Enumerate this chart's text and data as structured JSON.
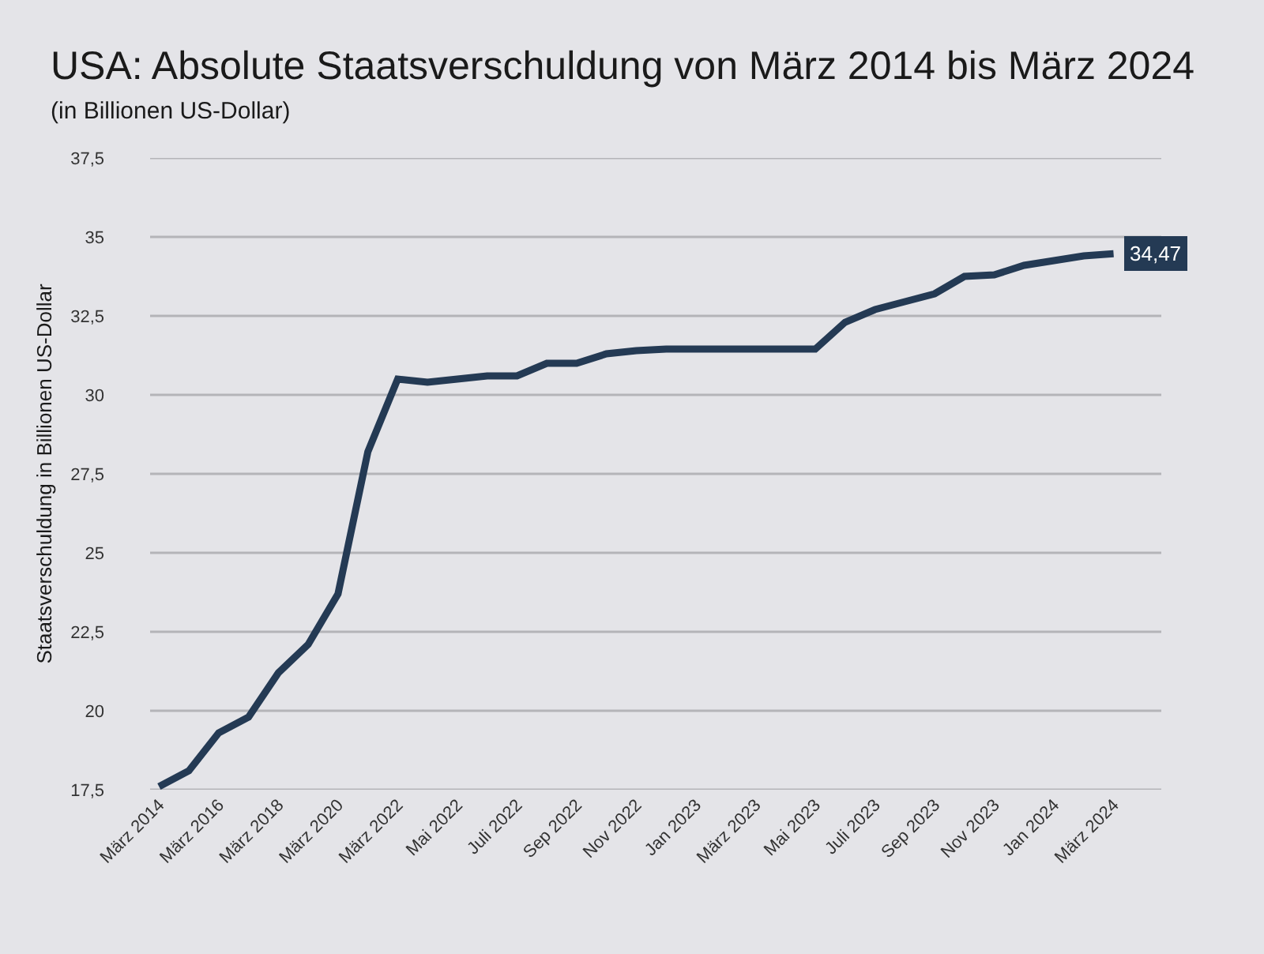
{
  "chart_data": {
    "type": "line",
    "title": "USA: Absolute Staatsverschuldung von März 2014 bis März 2024",
    "subtitle": "(in Billionen US-Dollar)",
    "ylabel": "Staatsverschuldung in Billionen US-Dollar",
    "categories": [
      "März 2014",
      null,
      "März 2016",
      null,
      "März 2018",
      null,
      "März 2020",
      null,
      "März 2022",
      null,
      "Mai 2022",
      null,
      "Juli 2022",
      null,
      "Sep 2022",
      null,
      "Nov 2022",
      null,
      "Jan 2023",
      null,
      "März 2023",
      null,
      "Mai 2023",
      null,
      "Juli 2023",
      null,
      "Sep 2023",
      null,
      "Nov 2023",
      null,
      "Jan 2024",
      null,
      "März 2024"
    ],
    "series": [
      {
        "color": "#243a54",
        "values": [
          17.6,
          18.1,
          19.3,
          19.8,
          21.2,
          22.1,
          23.7,
          28.2,
          30.5,
          30.4,
          30.5,
          30.6,
          30.6,
          31.0,
          31.0,
          31.3,
          31.4,
          31.45,
          31.45,
          31.45,
          31.45,
          31.45,
          31.45,
          32.3,
          32.7,
          32.95,
          33.2,
          33.75,
          33.8,
          34.1,
          34.25,
          34.4,
          34.47
        ],
        "value_labels": [
          null,
          null,
          null,
          null,
          null,
          null,
          null,
          null,
          null,
          null,
          null,
          null,
          null,
          null,
          null,
          null,
          null,
          null,
          null,
          null,
          null,
          null,
          null,
          null,
          null,
          null,
          null,
          null,
          null,
          null,
          null,
          null,
          "34,47"
        ]
      }
    ],
    "ylim": [
      17.5,
      37.5
    ],
    "yticks": [
      {
        "value": 17.5,
        "label": "17,5"
      },
      20,
      {
        "value": 22.5,
        "label": "22,5"
      },
      25,
      {
        "value": 27.5,
        "label": "27,5"
      },
      30,
      {
        "value": 32.5,
        "label": "32,5"
      },
      35,
      {
        "value": 37.5,
        "label": "37,5"
      }
    ],
    "grid": "y",
    "marker": "none",
    "line_style": "solid"
  }
}
